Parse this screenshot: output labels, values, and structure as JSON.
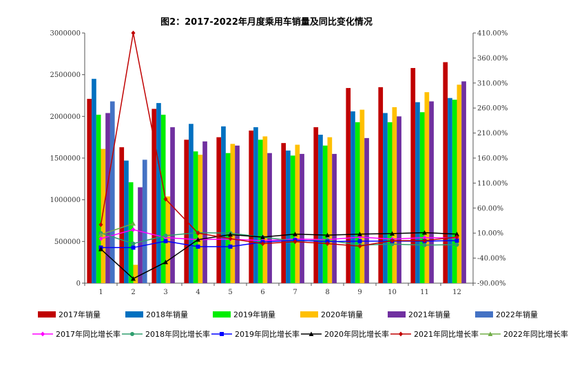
{
  "chart_data": {
    "type": "bar",
    "title": "图2：2017-2022年月度乘用车销量及同比变化情况",
    "xlabel": "",
    "ylabel": "",
    "categories": [
      "1",
      "2",
      "3",
      "4",
      "5",
      "6",
      "7",
      "8",
      "9",
      "10",
      "11",
      "12"
    ],
    "ylim": [
      0,
      3000000
    ],
    "yticks": [
      "0",
      "500000",
      "1000000",
      "1500000",
      "2000000",
      "2500000",
      "3000000"
    ],
    "y2lim": [
      -90,
      410
    ],
    "y2ticks": [
      "-90.00%",
      "-40.00%",
      "10.00%",
      "60.00%",
      "110.00%",
      "160.00%",
      "210.00%",
      "260.00%",
      "310.00%",
      "360.00%",
      "410.00%"
    ],
    "grid": false,
    "legend_position": "bottom",
    "series": [
      {
        "name": "2017年销量",
        "kind": "bar",
        "color": "#c00000",
        "values": [
          2210000,
          1630000,
          2090000,
          1720000,
          1750000,
          1830000,
          1680000,
          1870000,
          2340000,
          2350000,
          2580000,
          2650000
        ]
      },
      {
        "name": "2018年销量",
        "kind": "bar",
        "color": "#0070c0",
        "values": [
          2450000,
          1470000,
          2160000,
          1910000,
          1880000,
          1870000,
          1590000,
          1780000,
          2060000,
          2040000,
          2170000,
          2220000
        ]
      },
      {
        "name": "2019年销量",
        "kind": "bar",
        "color": "#00ee00",
        "values": [
          2020000,
          1210000,
          2020000,
          1580000,
          1560000,
          1720000,
          1530000,
          1650000,
          1930000,
          1930000,
          2050000,
          2200000
        ]
      },
      {
        "name": "2020年销量",
        "kind": "bar",
        "color": "#ffc000",
        "values": [
          1610000,
          220000,
          1040000,
          1540000,
          1670000,
          1760000,
          1660000,
          1750000,
          2080000,
          2110000,
          2290000,
          2380000
        ]
      },
      {
        "name": "2021年销量",
        "kind": "bar",
        "color": "#7030a0",
        "values": [
          2040000,
          1150000,
          1870000,
          1700000,
          1650000,
          1560000,
          1550000,
          1550000,
          1740000,
          2000000,
          2180000,
          2420000
        ]
      },
      {
        "name": "2022年销量",
        "kind": "bar",
        "color": "#4472c4",
        "values": [
          2180000,
          1480000,
          null,
          null,
          null,
          null,
          null,
          null,
          null,
          null,
          null,
          null
        ]
      },
      {
        "name": "2017年同比增长率",
        "kind": "line",
        "color": "#ff00ff",
        "marker": "diamond",
        "values": [
          -1,
          17,
          1,
          -3,
          -2,
          -5,
          -2,
          -3,
          2,
          -2,
          1,
          0
        ]
      },
      {
        "name": "2018年同比增长率",
        "kind": "line",
        "color": "#2e9e6e",
        "marker": "circle",
        "values": [
          10,
          -11,
          5,
          11,
          10,
          2,
          -6,
          -4,
          -14,
          -12,
          -14,
          -13
        ]
      },
      {
        "name": "2019年同比增长率",
        "kind": "line",
        "color": "#0000ff",
        "marker": "square",
        "values": [
          -19,
          -19,
          -6,
          -17,
          -17,
          -8,
          -4,
          -7,
          -6,
          -6,
          -6,
          -5
        ]
      },
      {
        "name": "2020年同比增长率",
        "kind": "line",
        "color": "#000000",
        "marker": "triangle",
        "values": [
          -22,
          -81,
          -48,
          -3,
          7,
          2,
          8,
          6,
          8,
          9,
          11,
          8
        ]
      },
      {
        "name": "2021年同比增长率",
        "kind": "line",
        "color": "#c00000",
        "marker": "diamond",
        "values": [
          27,
          410,
          78,
          10,
          -1,
          -11,
          -7,
          -11,
          -16,
          -5,
          -5,
          2
        ]
      },
      {
        "name": "2022年同比增长率",
        "kind": "line",
        "color": "#70ad47",
        "marker": "triangle",
        "values": [
          7,
          29,
          null,
          null,
          null,
          null,
          null,
          null,
          null,
          null,
          null,
          null
        ]
      }
    ]
  }
}
